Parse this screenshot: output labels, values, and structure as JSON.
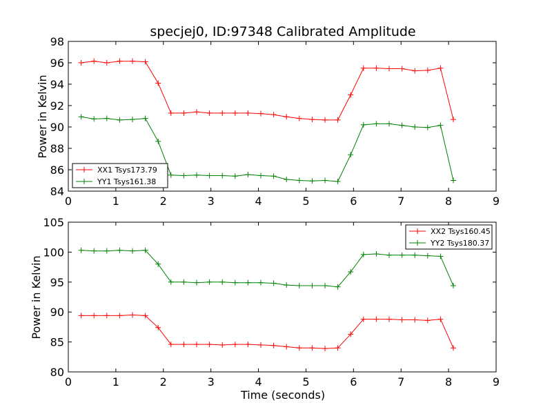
{
  "chart_data": [
    {
      "type": "line",
      "title": "specjej0, ID:97348 Calibrated Amplitude",
      "xlabel": "",
      "ylabel": "Power in Kelvin",
      "xlim": [
        0,
        9
      ],
      "ylim": [
        84,
        98
      ],
      "xticks": [
        0,
        1,
        2,
        3,
        4,
        5,
        6,
        7,
        8,
        9
      ],
      "yticks": [
        84,
        86,
        88,
        90,
        92,
        94,
        96,
        98
      ],
      "legend_position": "lower-left",
      "grid": false,
      "series": [
        {
          "name": "XX1 Tsys173.79",
          "color": "#ff0000",
          "marker": "plus",
          "x": [
            0.27,
            0.54,
            0.81,
            1.08,
            1.35,
            1.62,
            1.89,
            2.16,
            2.43,
            2.7,
            2.97,
            3.24,
            3.51,
            3.78,
            4.05,
            4.32,
            4.59,
            4.86,
            5.13,
            5.4,
            5.67,
            5.94,
            6.21,
            6.48,
            6.75,
            7.02,
            7.29,
            7.56,
            7.83,
            8.1
          ],
          "y": [
            96.0,
            96.15,
            96.0,
            96.15,
            96.15,
            96.1,
            94.1,
            91.3,
            91.3,
            91.4,
            91.3,
            91.3,
            91.3,
            91.3,
            91.25,
            91.15,
            90.95,
            90.8,
            90.7,
            90.65,
            90.65,
            93.0,
            95.5,
            95.5,
            95.45,
            95.45,
            95.25,
            95.3,
            95.5,
            90.7
          ]
        },
        {
          "name": "YY1 Tsys161.38",
          "color": "#008000",
          "marker": "plus",
          "x": [
            0.27,
            0.54,
            0.81,
            1.08,
            1.35,
            1.62,
            1.89,
            2.16,
            2.43,
            2.7,
            2.97,
            3.24,
            3.51,
            3.78,
            4.05,
            4.32,
            4.59,
            4.86,
            5.13,
            5.4,
            5.67,
            5.94,
            6.21,
            6.48,
            6.75,
            7.02,
            7.29,
            7.56,
            7.83,
            8.1
          ],
          "y": [
            90.95,
            90.75,
            90.8,
            90.65,
            90.7,
            90.8,
            88.65,
            85.5,
            85.45,
            85.5,
            85.45,
            85.45,
            85.4,
            85.55,
            85.45,
            85.4,
            85.1,
            85.0,
            84.95,
            85.0,
            84.9,
            87.4,
            90.2,
            90.3,
            90.3,
            90.15,
            90.0,
            89.95,
            90.15,
            85.0
          ]
        }
      ]
    },
    {
      "type": "line",
      "title": "",
      "xlabel": "Time (seconds)",
      "ylabel": "Power in Kelvin",
      "xlim": [
        0,
        9
      ],
      "ylim": [
        80,
        105
      ],
      "xticks": [
        0,
        1,
        2,
        3,
        4,
        5,
        6,
        7,
        8,
        9
      ],
      "yticks": [
        80,
        85,
        90,
        95,
        100,
        105
      ],
      "legend_position": "upper-right",
      "grid": false,
      "series": [
        {
          "name": "XX2 Tsys160.45",
          "color": "#ff0000",
          "marker": "plus",
          "x": [
            0.27,
            0.54,
            0.81,
            1.08,
            1.35,
            1.62,
            1.89,
            2.16,
            2.43,
            2.7,
            2.97,
            3.24,
            3.51,
            3.78,
            4.05,
            4.32,
            4.59,
            4.86,
            5.13,
            5.4,
            5.67,
            5.94,
            6.21,
            6.48,
            6.75,
            7.02,
            7.29,
            7.56,
            7.83,
            8.1
          ],
          "y": [
            89.4,
            89.4,
            89.4,
            89.4,
            89.5,
            89.4,
            87.4,
            84.6,
            84.6,
            84.6,
            84.6,
            84.5,
            84.6,
            84.6,
            84.5,
            84.4,
            84.2,
            84.0,
            84.0,
            83.9,
            84.0,
            86.3,
            88.8,
            88.8,
            88.8,
            88.7,
            88.7,
            88.6,
            88.8,
            84.0
          ]
        },
        {
          "name": "YY2 Tsys180.37",
          "color": "#008000",
          "marker": "plus",
          "x": [
            0.27,
            0.54,
            0.81,
            1.08,
            1.35,
            1.62,
            1.89,
            2.16,
            2.43,
            2.7,
            2.97,
            3.24,
            3.51,
            3.78,
            4.05,
            4.32,
            4.59,
            4.86,
            5.13,
            5.4,
            5.67,
            5.94,
            6.21,
            6.48,
            6.75,
            7.02,
            7.29,
            7.56,
            7.83,
            8.1
          ],
          "y": [
            100.3,
            100.2,
            100.2,
            100.3,
            100.2,
            100.3,
            98.0,
            95.0,
            95.0,
            94.9,
            95.0,
            95.0,
            94.9,
            94.9,
            94.9,
            94.8,
            94.5,
            94.4,
            94.4,
            94.4,
            94.2,
            96.7,
            99.6,
            99.7,
            99.5,
            99.5,
            99.5,
            99.4,
            99.3,
            94.4
          ]
        }
      ]
    }
  ]
}
